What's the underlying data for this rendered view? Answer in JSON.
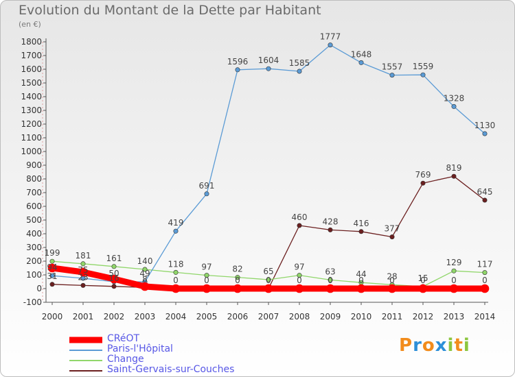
{
  "title": "Evolution du Montant de la Dette par Habitant",
  "subtitle": "(en €)",
  "brand": {
    "text": "Proxiti",
    "letters": [
      "P",
      "r",
      "o",
      "x",
      "i",
      "t",
      "i"
    ],
    "colors": [
      "#f28c1c",
      "#2d8fd8",
      "#f28c1c",
      "#2d8fd8",
      "#8cc63f",
      "#f28c1c",
      "#8cc63f"
    ]
  },
  "chart_data": {
    "type": "line",
    "title": "Evolution du Montant de la Dette par Habitant",
    "subtitle": "(en €)",
    "xlabel": "",
    "ylabel": "",
    "x": [
      "2000",
      "2001",
      "2002",
      "2003",
      "2004",
      "2005",
      "2006",
      "2007",
      "2008",
      "2009",
      "2010",
      "2011",
      "2012",
      "2013",
      "2014"
    ],
    "ylim": [
      -100,
      1800
    ],
    "yticks": [
      -100,
      0,
      100,
      200,
      300,
      400,
      500,
      600,
      700,
      800,
      900,
      1000,
      1100,
      1200,
      1300,
      1400,
      1500,
      1600,
      1700,
      1800
    ],
    "grid": false,
    "legend_position": "bottom-left",
    "series": [
      {
        "name": "CRéOT",
        "color": "#ff0000",
        "width": 9,
        "values": [
          150,
          120,
          70,
          15,
          0,
          0,
          0,
          0,
          0,
          0,
          0,
          0,
          0,
          0,
          0
        ],
        "labels": [
          "",
          "",
          "",
          "",
          "0",
          "0",
          "0",
          "0",
          "0",
          "0",
          "0",
          "0",
          "0",
          "0",
          "0"
        ]
      },
      {
        "name": "Paris-l'Hôpital",
        "color": "#5b9bd5",
        "width": 1.3,
        "values": [
          94,
          75,
          50,
          49,
          419,
          691,
          1596,
          1604,
          1585,
          1777,
          1648,
          1557,
          1559,
          1328,
          1130
        ],
        "labels": [
          "94",
          "75",
          "50",
          "49",
          "419",
          "691",
          "1596",
          "1604",
          "1585",
          "1777",
          "1648",
          "1557",
          "1559",
          "1328",
          "1130"
        ]
      },
      {
        "name": "Change",
        "color": "#90d66a",
        "width": 1.3,
        "values": [
          199,
          181,
          161,
          140,
          118,
          97,
          82,
          65,
          97,
          63,
          44,
          28,
          15,
          129,
          117
        ],
        "labels": [
          "199",
          "181",
          "161",
          "140",
          "118",
          "97",
          "82",
          "65",
          "97",
          "63",
          "44",
          "28",
          "15",
          "129",
          "117"
        ]
      },
      {
        "name": "Saint-Gervais-sur-Couches",
        "color": "#6b1f1f",
        "width": 1.3,
        "values": [
          31,
          23,
          16,
          8,
          0,
          0,
          0,
          0,
          460,
          428,
          416,
          377,
          769,
          819,
          645
        ],
        "labels": [
          "31",
          "23",
          "16",
          "8",
          "",
          "",
          "",
          "",
          "460",
          "428",
          "416",
          "377",
          "769",
          "819",
          "645"
        ]
      }
    ]
  }
}
